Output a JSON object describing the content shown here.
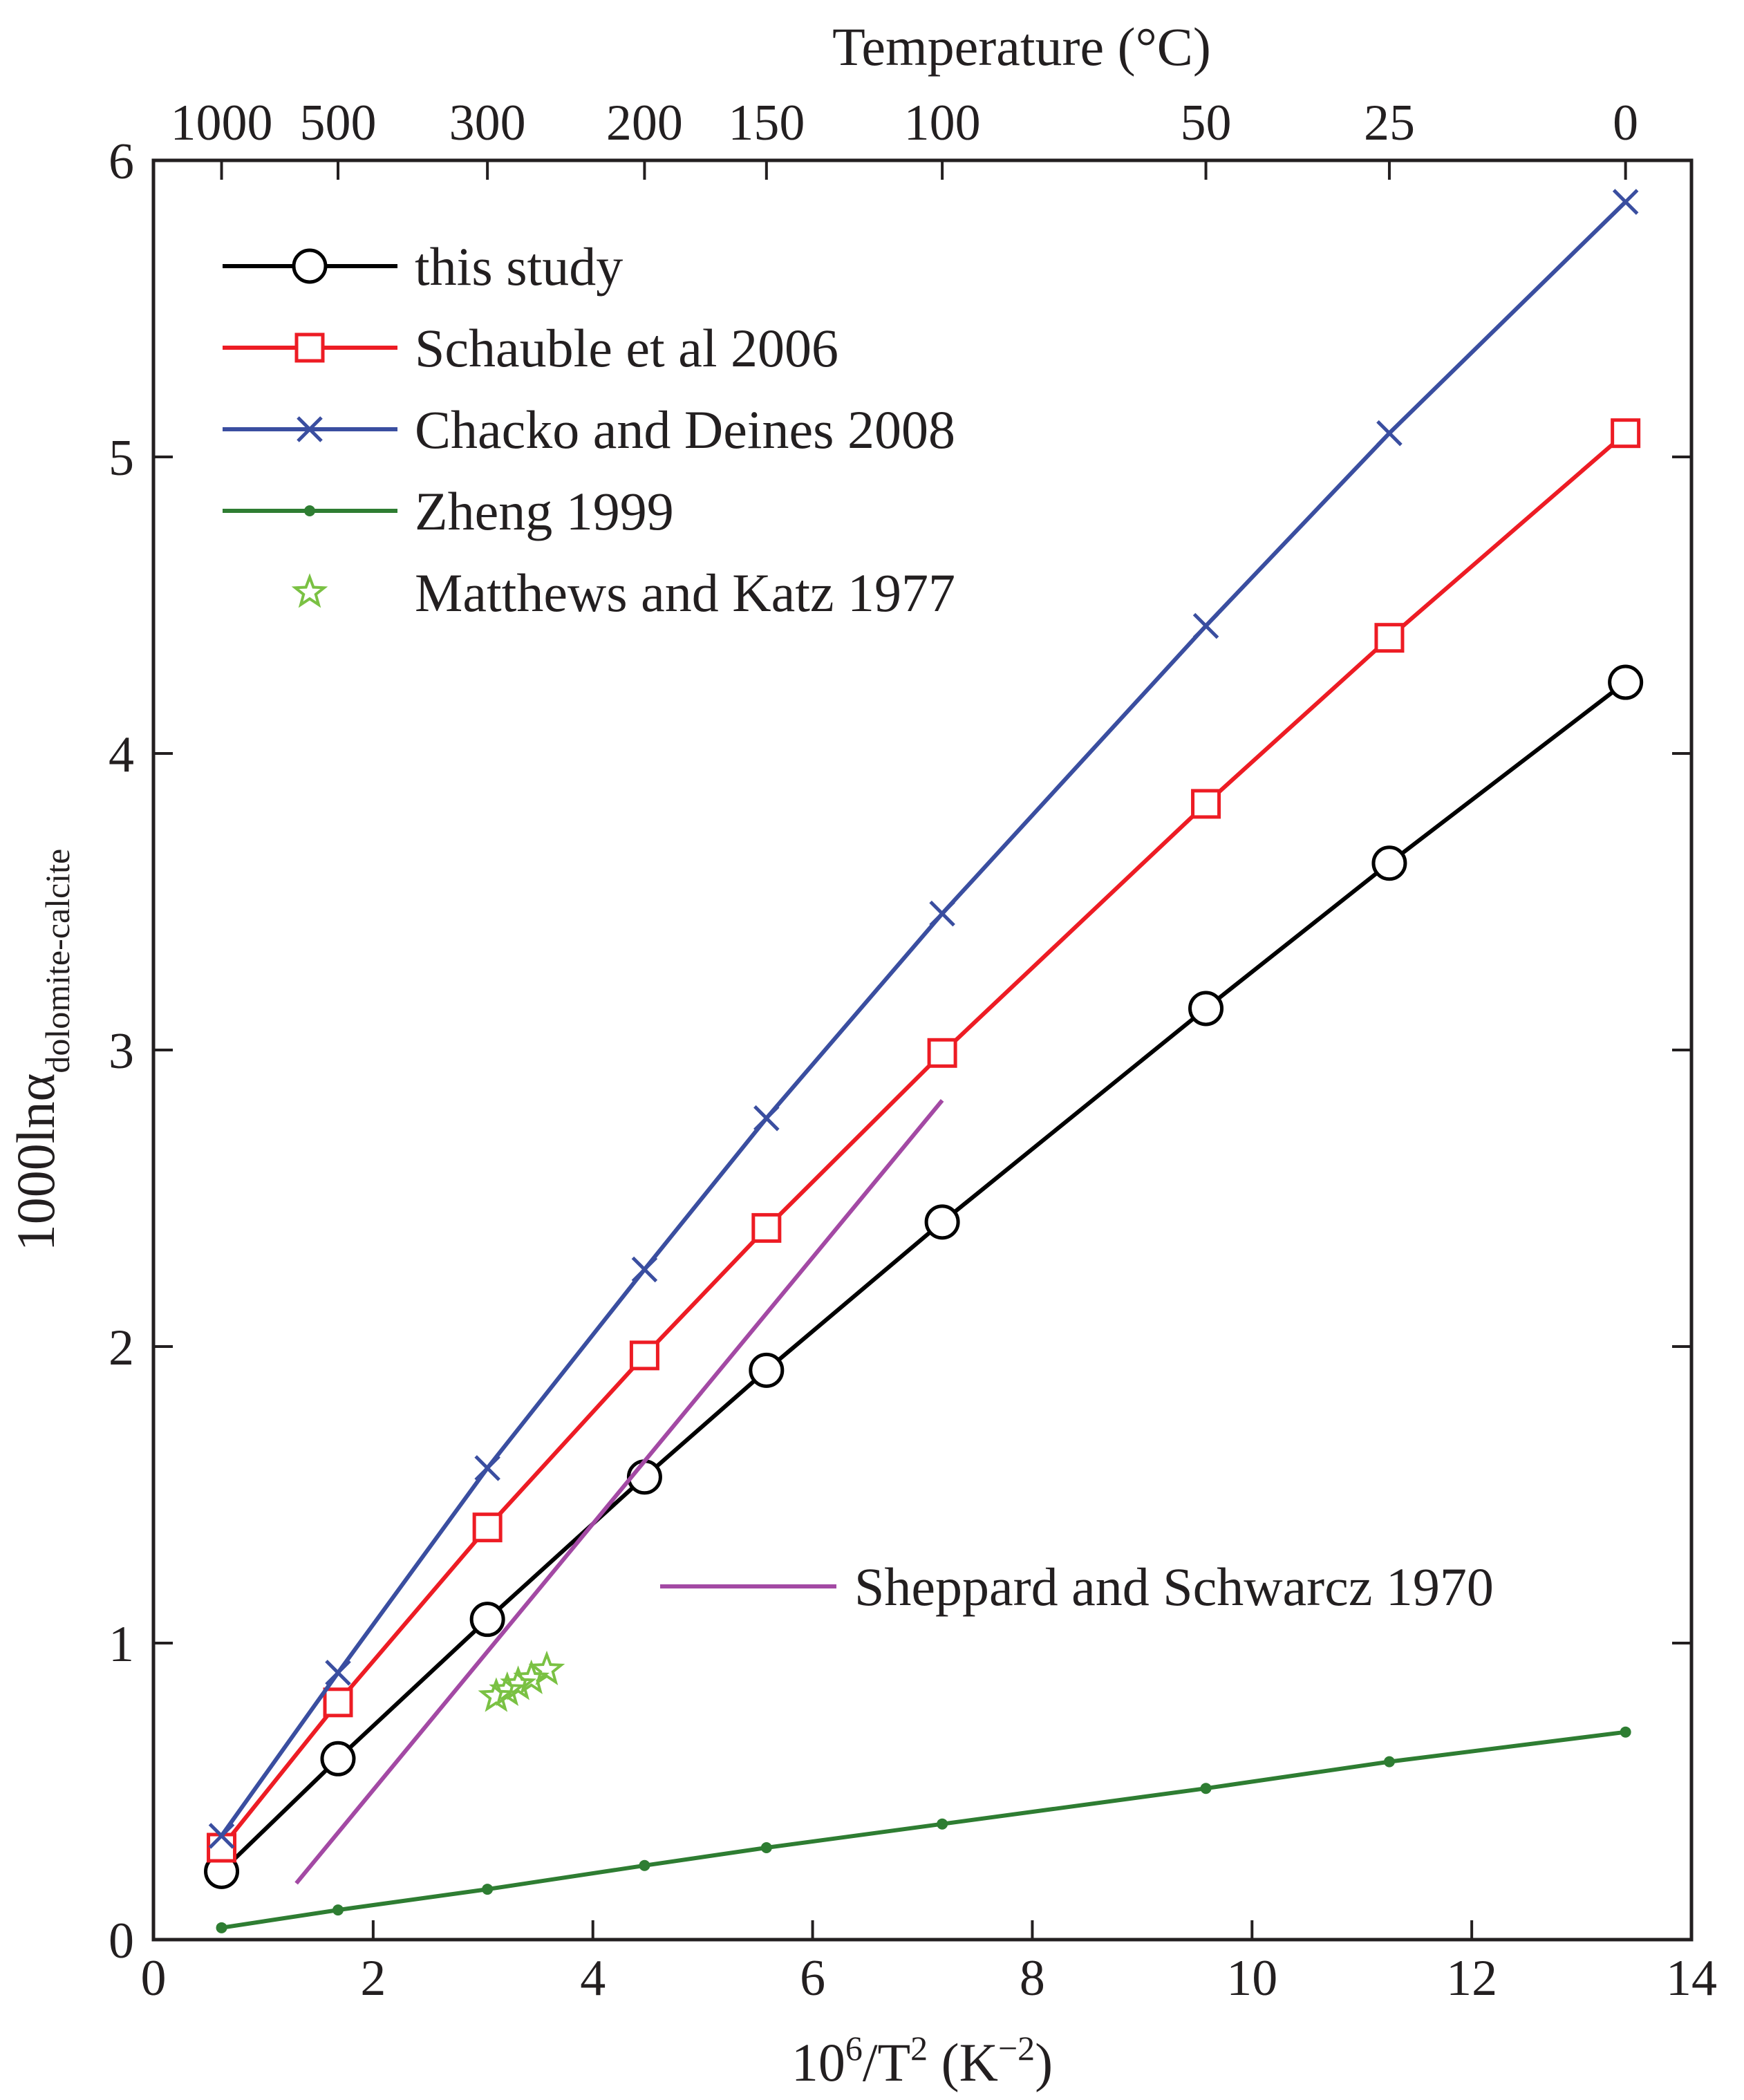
{
  "chart_data": {
    "type": "line",
    "xlabel": {
      "base": "10",
      "sup1": "6",
      "mid": "/T",
      "sup2": "2",
      "unit_open": " (K",
      "sup3": "−2",
      "unit_close": ")"
    },
    "ylabel": {
      "main": "1000lnα",
      "sub": "dolomite-calcite"
    },
    "top_axis_label": "Temperature (°C)",
    "xlim": [
      0,
      14
    ],
    "ylim": [
      0,
      6
    ],
    "x_ticks": [
      "0",
      "2",
      "4",
      "6",
      "8",
      "10",
      "12",
      "14"
    ],
    "x_tick_values": [
      0,
      2,
      4,
      6,
      8,
      10,
      12,
      14
    ],
    "y_ticks": [
      "0",
      "1",
      "2",
      "3",
      "4",
      "5",
      "6"
    ],
    "y_tick_values": [
      0,
      1,
      2,
      3,
      4,
      5,
      6
    ],
    "top_ticks": [
      {
        "label": "1000",
        "x": 0.62
      },
      {
        "label": "500",
        "x": 1.68
      },
      {
        "label": "300",
        "x": 3.04
      },
      {
        "label": "200",
        "x": 4.47
      },
      {
        "label": "150",
        "x": 5.58
      },
      {
        "label": "100",
        "x": 7.18
      },
      {
        "label": "50",
        "x": 9.58
      },
      {
        "label": "25",
        "x": 11.25
      },
      {
        "label": "0",
        "x": 13.4
      }
    ],
    "grid": false,
    "legend_position": "top-left",
    "series": [
      {
        "name": "this study",
        "color": "#000000",
        "marker": "circle",
        "x": [
          0.62,
          1.68,
          3.04,
          4.47,
          5.58,
          7.18,
          9.58,
          11.25,
          13.4
        ],
        "y": [
          0.23,
          0.61,
          1.08,
          1.56,
          1.92,
          2.42,
          3.14,
          3.63,
          4.24
        ]
      },
      {
        "name": "Schauble et al 2006",
        "color": "#ed1c24",
        "marker": "square",
        "x": [
          0.62,
          1.68,
          3.04,
          4.47,
          5.58,
          7.18,
          9.58,
          11.25,
          13.4
        ],
        "y": [
          0.31,
          0.8,
          1.39,
          1.97,
          2.4,
          2.99,
          3.83,
          4.39,
          5.08
        ]
      },
      {
        "name": "Chacko and Deines 2008",
        "color": "#3a4ea0",
        "marker": "x",
        "x": [
          0.62,
          1.68,
          3.04,
          4.47,
          5.58,
          7.18,
          9.58,
          11.25,
          13.4
        ],
        "y": [
          0.35,
          0.9,
          1.59,
          2.26,
          2.77,
          3.46,
          4.43,
          5.08,
          5.86
        ]
      },
      {
        "name": "Zheng 1999",
        "color": "#2e7d32",
        "marker": "dot",
        "x": [
          0.62,
          1.68,
          3.04,
          4.47,
          5.58,
          7.18,
          9.58,
          11.25,
          13.4
        ],
        "y": [
          0.04,
          0.1,
          0.17,
          0.25,
          0.31,
          0.39,
          0.51,
          0.6,
          0.7
        ]
      },
      {
        "name": "Matthews and Katz 1977",
        "color": "#7ac143",
        "marker": "star",
        "line": false,
        "x": [
          3.12,
          3.22,
          3.32,
          3.44,
          3.58
        ],
        "y": [
          0.82,
          0.84,
          0.86,
          0.88,
          0.91
        ]
      },
      {
        "name": "Sheppard and Schwarcz 1970",
        "color": "#a349a4",
        "marker": "none",
        "x": [
          1.3,
          7.18
        ],
        "y": [
          0.19,
          2.83
        ]
      }
    ]
  }
}
